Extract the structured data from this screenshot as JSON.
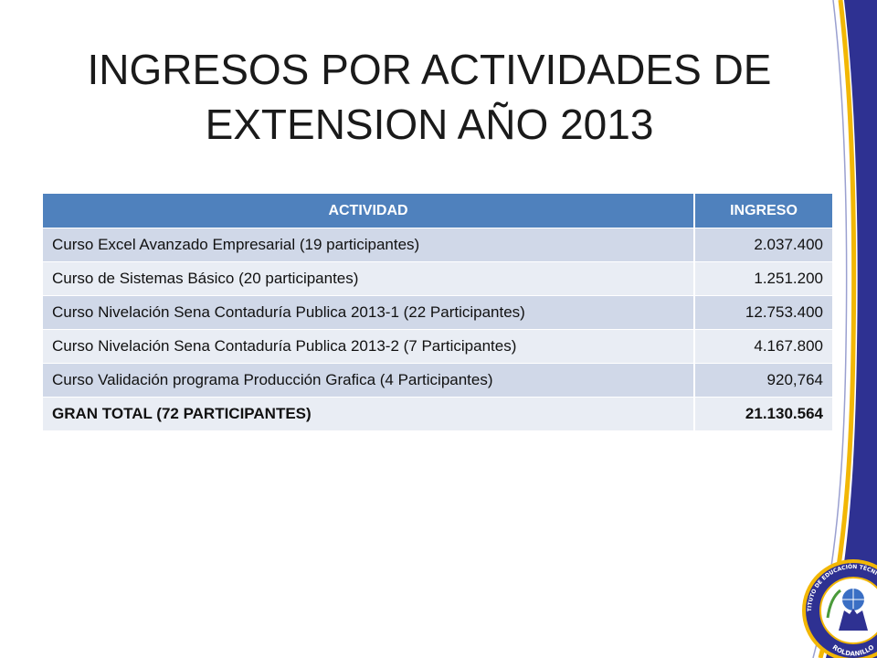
{
  "title_line1": "INGRESOS POR ACTIVIDADES DE",
  "title_line2": "EXTENSION AÑO 2013",
  "table": {
    "headers": [
      "ACTIVIDAD",
      "INGRESO"
    ],
    "rows": [
      {
        "activity": "Curso Excel Avanzado Empresarial (19 participantes)",
        "amount": "2.037.400"
      },
      {
        "activity": "Curso de Sistemas Básico (20 participantes)",
        "amount": "1.251.200"
      },
      {
        "activity": "Curso Nivelación Sena Contaduría Publica 2013-1 (22 Participantes)",
        "amount": "12.753.400"
      },
      {
        "activity": "Curso Nivelación Sena Contaduría Publica 2013-2 (7 Participantes)",
        "amount": "4.167.800"
      },
      {
        "activity": "Curso Validación programa Producción Grafica (4 Participantes)",
        "amount": "920,764"
      },
      {
        "activity": "GRAN TOTAL (72 PARTICIPANTES)",
        "amount": "21.130.564"
      }
    ]
  },
  "seal": {
    "top_text": "INSTITUTO DE EDUCACIÓN TÉCNICA PROFESIONAL",
    "bottom_text": "ROLDANILLO"
  },
  "colors": {
    "header_blue": "#4f81bd",
    "row_odd": "#d0d8e8",
    "row_even": "#e9edf4",
    "border_navy": "#2e3192",
    "border_gold": "#f2b705"
  }
}
